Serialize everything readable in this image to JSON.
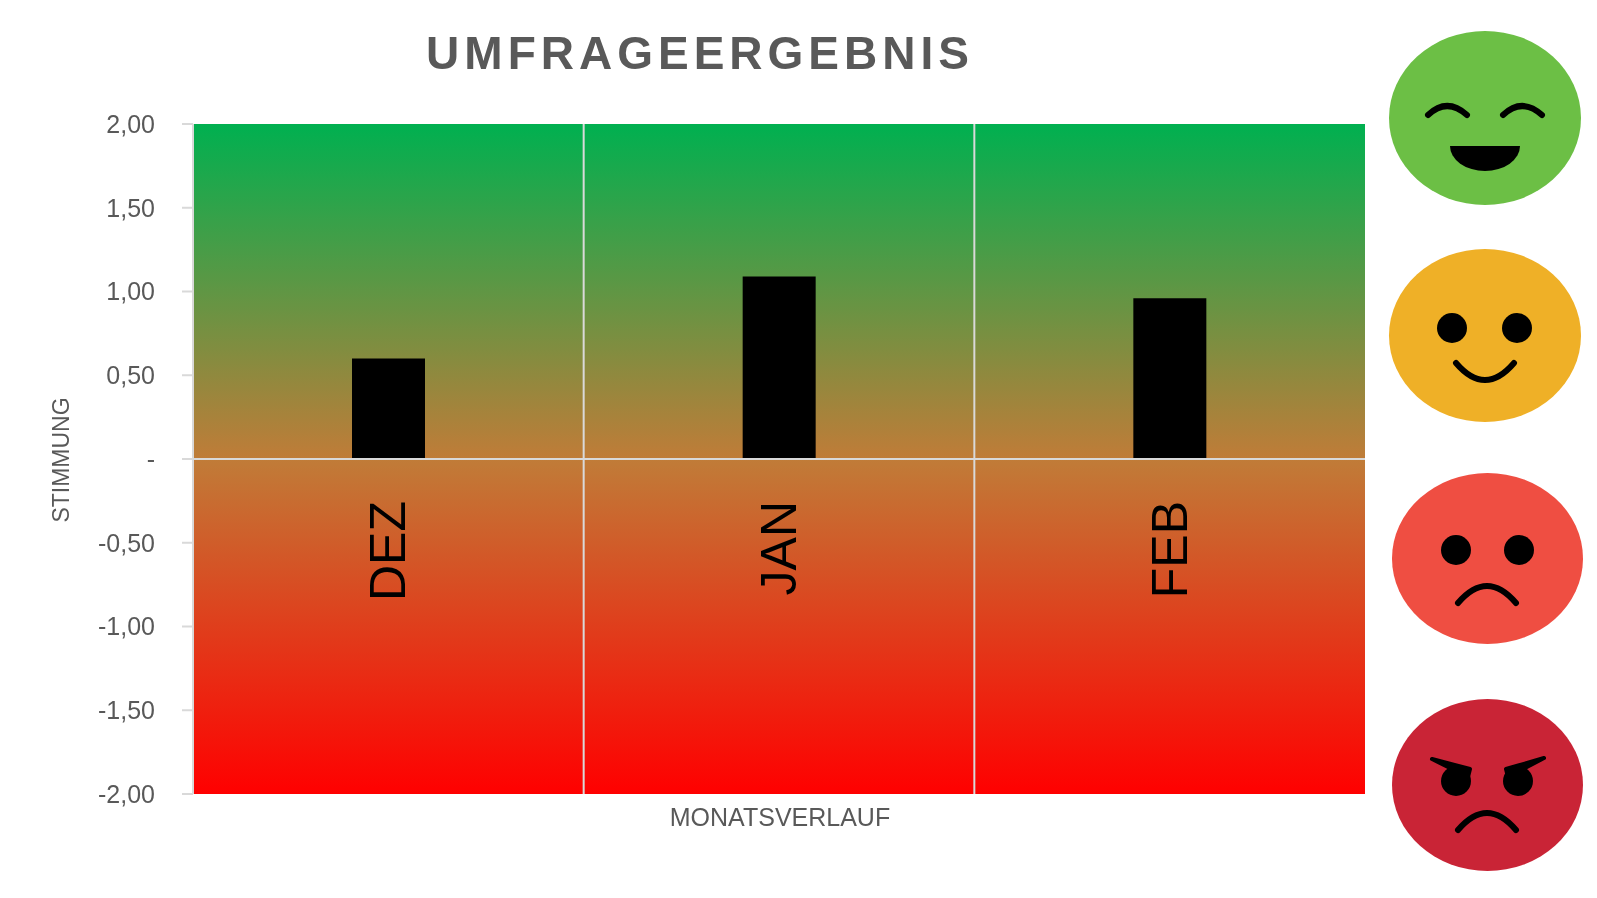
{
  "chart_data": {
    "type": "bar",
    "title": "UMFRAGEERGEBNIS",
    "xlabel": "MONATSVERLAUF",
    "ylabel": "STIMMUNG",
    "categories": [
      "DEZ",
      "JAN",
      "FEB"
    ],
    "values": [
      0.6,
      1.09,
      0.96
    ],
    "color": "#000000",
    "ylim": [
      -2,
      2
    ],
    "yticks": [
      {
        "value": 2,
        "label": "2,00"
      },
      {
        "value": 1.5,
        "label": "1,50"
      },
      {
        "value": 1,
        "label": "1,00"
      },
      {
        "value": 0.5,
        "label": "0,50"
      },
      {
        "value": 0,
        "label": "-"
      },
      {
        "value": -0.5,
        "label": "-0,50"
      },
      {
        "value": -1,
        "label": "-1,00"
      },
      {
        "value": -1.5,
        "label": "-1,50"
      },
      {
        "value": -2,
        "label": "-2,00"
      }
    ],
    "grid": "x"
  }
}
